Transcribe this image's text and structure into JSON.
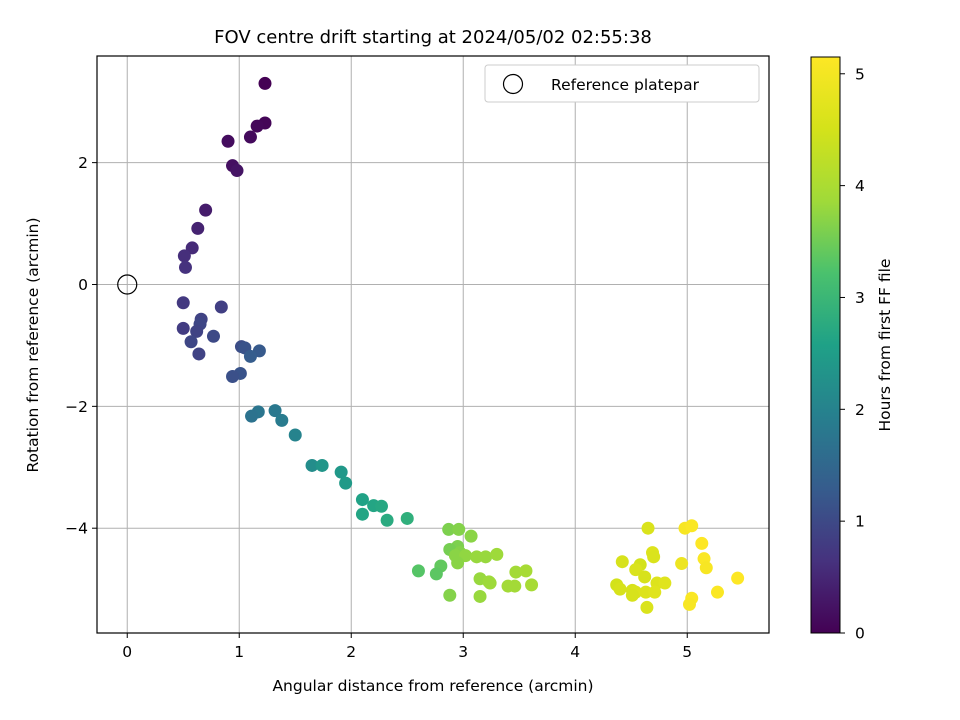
{
  "chart_data": {
    "type": "scatter",
    "title": "FOV centre drift starting at 2024/05/02 02:55:38",
    "xlabel": "Angular distance from reference (arcmin)",
    "ylabel": "Rotation from reference (arcmin)",
    "xlim": [
      -0.27,
      5.73
    ],
    "ylim": [
      -5.72,
      3.75
    ],
    "x_ticks": [
      0,
      1,
      2,
      3,
      4,
      5
    ],
    "y_ticks": [
      -4,
      -2,
      0,
      2
    ],
    "grid": true,
    "legend": {
      "position": "top-right",
      "entries": [
        "Reference platepar"
      ]
    },
    "reference_point": {
      "x": 0,
      "y": 0
    },
    "colorbar": {
      "label": "Hours from first FF file",
      "range": [
        0,
        5.15
      ],
      "ticks": [
        0,
        1,
        2,
        3,
        4,
        5
      ],
      "colormap": "viridis"
    },
    "points": [
      {
        "x": 1.23,
        "y": 3.3,
        "c": 0.0
      },
      {
        "x": 1.23,
        "y": 2.65,
        "c": 0.05
      },
      {
        "x": 1.16,
        "y": 2.6,
        "c": 0.08
      },
      {
        "x": 1.1,
        "y": 2.42,
        "c": 0.12
      },
      {
        "x": 0.9,
        "y": 2.35,
        "c": 0.15
      },
      {
        "x": 0.94,
        "y": 1.95,
        "c": 0.2
      },
      {
        "x": 0.98,
        "y": 1.87,
        "c": 0.25
      },
      {
        "x": 0.7,
        "y": 1.22,
        "c": 0.35
      },
      {
        "x": 0.63,
        "y": 0.92,
        "c": 0.45
      },
      {
        "x": 0.58,
        "y": 0.6,
        "c": 0.55
      },
      {
        "x": 0.51,
        "y": 0.47,
        "c": 0.6
      },
      {
        "x": 0.52,
        "y": 0.28,
        "c": 0.65
      },
      {
        "x": 0.5,
        "y": -0.3,
        "c": 0.75
      },
      {
        "x": 0.84,
        "y": -0.37,
        "c": 0.85
      },
      {
        "x": 0.66,
        "y": -0.57,
        "c": 0.9
      },
      {
        "x": 0.65,
        "y": -0.65,
        "c": 0.95
      },
      {
        "x": 0.5,
        "y": -0.72,
        "c": 0.8
      },
      {
        "x": 0.62,
        "y": -0.77,
        "c": 0.9
      },
      {
        "x": 0.77,
        "y": -0.85,
        "c": 1.0
      },
      {
        "x": 0.57,
        "y": -0.94,
        "c": 0.95
      },
      {
        "x": 1.02,
        "y": -1.02,
        "c": 1.05
      },
      {
        "x": 1.05,
        "y": -1.04,
        "c": 1.15
      },
      {
        "x": 1.18,
        "y": -1.09,
        "c": 1.25
      },
      {
        "x": 0.64,
        "y": -1.14,
        "c": 0.9
      },
      {
        "x": 1.1,
        "y": -1.18,
        "c": 1.3
      },
      {
        "x": 1.01,
        "y": -1.46,
        "c": 1.15
      },
      {
        "x": 0.94,
        "y": -1.51,
        "c": 1.1
      },
      {
        "x": 1.32,
        "y": -2.07,
        "c": 1.8
      },
      {
        "x": 1.17,
        "y": -2.09,
        "c": 1.75
      },
      {
        "x": 1.11,
        "y": -2.16,
        "c": 1.7
      },
      {
        "x": 1.38,
        "y": -2.23,
        "c": 1.85
      },
      {
        "x": 1.5,
        "y": -2.47,
        "c": 2.0
      },
      {
        "x": 1.65,
        "y": -2.97,
        "c": 2.2
      },
      {
        "x": 1.74,
        "y": -2.97,
        "c": 2.35
      },
      {
        "x": 1.91,
        "y": -3.08,
        "c": 2.4
      },
      {
        "x": 1.95,
        "y": -3.26,
        "c": 2.45
      },
      {
        "x": 2.1,
        "y": -3.53,
        "c": 2.6
      },
      {
        "x": 2.2,
        "y": -3.63,
        "c": 2.65
      },
      {
        "x": 2.27,
        "y": -3.64,
        "c": 2.7
      },
      {
        "x": 2.1,
        "y": -3.77,
        "c": 2.65
      },
      {
        "x": 2.32,
        "y": -3.87,
        "c": 2.75
      },
      {
        "x": 2.5,
        "y": -3.84,
        "c": 2.85
      },
      {
        "x": 2.87,
        "y": -4.02,
        "c": 3.6
      },
      {
        "x": 2.96,
        "y": -4.02,
        "c": 3.65
      },
      {
        "x": 3.07,
        "y": -4.13,
        "c": 3.7
      },
      {
        "x": 2.95,
        "y": -4.3,
        "c": 3.6
      },
      {
        "x": 2.88,
        "y": -4.35,
        "c": 3.55
      },
      {
        "x": 2.97,
        "y": -4.4,
        "c": 3.65
      },
      {
        "x": 2.93,
        "y": -4.45,
        "c": 3.7
      },
      {
        "x": 3.02,
        "y": -4.45,
        "c": 3.75
      },
      {
        "x": 3.12,
        "y": -4.47,
        "c": 3.8
      },
      {
        "x": 3.2,
        "y": -4.47,
        "c": 3.8
      },
      {
        "x": 3.3,
        "y": -4.43,
        "c": 3.85
      },
      {
        "x": 2.95,
        "y": -4.57,
        "c": 3.7
      },
      {
        "x": 2.8,
        "y": -4.62,
        "c": 3.4
      },
      {
        "x": 2.6,
        "y": -4.7,
        "c": 3.3
      },
      {
        "x": 2.76,
        "y": -4.75,
        "c": 3.35
      },
      {
        "x": 3.47,
        "y": -4.72,
        "c": 3.9
      },
      {
        "x": 3.56,
        "y": -4.7,
        "c": 3.95
      },
      {
        "x": 3.15,
        "y": -4.83,
        "c": 3.8
      },
      {
        "x": 3.23,
        "y": -4.88,
        "c": 3.85
      },
      {
        "x": 3.24,
        "y": -4.9,
        "c": 3.85
      },
      {
        "x": 3.4,
        "y": -4.95,
        "c": 3.9
      },
      {
        "x": 3.46,
        "y": -4.95,
        "c": 3.9
      },
      {
        "x": 3.61,
        "y": -4.93,
        "c": 3.95
      },
      {
        "x": 2.88,
        "y": -5.1,
        "c": 3.65
      },
      {
        "x": 3.15,
        "y": -5.12,
        "c": 3.8
      },
      {
        "x": 4.65,
        "y": -4.0,
        "c": 4.6
      },
      {
        "x": 4.98,
        "y": -4.0,
        "c": 5.05
      },
      {
        "x": 5.04,
        "y": -3.96,
        "c": 5.1
      },
      {
        "x": 5.13,
        "y": -4.25,
        "c": 5.15
      },
      {
        "x": 4.69,
        "y": -4.4,
        "c": 4.65
      },
      {
        "x": 4.7,
        "y": -4.47,
        "c": 4.6
      },
      {
        "x": 5.15,
        "y": -4.5,
        "c": 5.1
      },
      {
        "x": 4.42,
        "y": -4.55,
        "c": 4.55
      },
      {
        "x": 4.95,
        "y": -4.58,
        "c": 4.9
      },
      {
        "x": 4.58,
        "y": -4.6,
        "c": 4.5
      },
      {
        "x": 4.54,
        "y": -4.68,
        "c": 4.6
      },
      {
        "x": 5.17,
        "y": -4.65,
        "c": 5.05
      },
      {
        "x": 4.62,
        "y": -4.8,
        "c": 4.55
      },
      {
        "x": 4.73,
        "y": -4.9,
        "c": 4.65
      },
      {
        "x": 4.8,
        "y": -4.9,
        "c": 4.7
      },
      {
        "x": 5.45,
        "y": -4.82,
        "c": 5.15
      },
      {
        "x": 4.37,
        "y": -4.93,
        "c": 4.5
      },
      {
        "x": 4.4,
        "y": -5.0,
        "c": 4.55
      },
      {
        "x": 4.51,
        "y": -5.02,
        "c": 4.55
      },
      {
        "x": 4.54,
        "y": -5.05,
        "c": 4.6
      },
      {
        "x": 4.63,
        "y": -5.05,
        "c": 4.65
      },
      {
        "x": 4.71,
        "y": -5.05,
        "c": 4.7
      },
      {
        "x": 4.51,
        "y": -5.1,
        "c": 4.55
      },
      {
        "x": 5.27,
        "y": -5.05,
        "c": 5.1
      },
      {
        "x": 5.04,
        "y": -5.15,
        "c": 5.1
      },
      {
        "x": 5.02,
        "y": -5.25,
        "c": 5.05
      },
      {
        "x": 4.64,
        "y": -5.3,
        "c": 4.6
      }
    ]
  }
}
